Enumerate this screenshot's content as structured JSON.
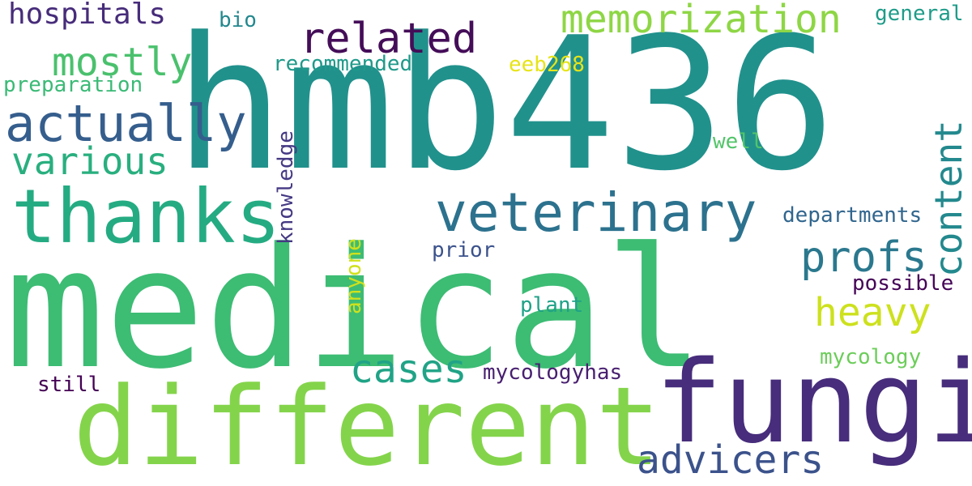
{
  "words": [
    {
      "text": "medical",
      "color": "#3dbc74"
    },
    {
      "text": "hmb436",
      "color": "#21918c"
    },
    {
      "text": "different",
      "color": "#84d44b"
    },
    {
      "text": "fungi",
      "color": "#472d7b"
    },
    {
      "text": "thanks",
      "color": "#25ab82"
    },
    {
      "text": "veterinary",
      "color": "#2c728e"
    },
    {
      "text": "actually",
      "color": "#355e8d"
    },
    {
      "text": "related",
      "color": "#440d58"
    },
    {
      "text": "memorization",
      "color": "#8ed645"
    },
    {
      "text": "mostly",
      "color": "#4ac16d"
    },
    {
      "text": "various",
      "color": "#29af7f"
    },
    {
      "text": "hospitals",
      "color": "#472c7a"
    },
    {
      "text": "content",
      "color": "#23898e"
    },
    {
      "text": "profs",
      "color": "#2a788e"
    },
    {
      "text": "heavy",
      "color": "#cde11d"
    },
    {
      "text": "cases",
      "color": "#20a386"
    },
    {
      "text": "advicers",
      "color": "#3b528b"
    },
    {
      "text": "knowledge",
      "color": "#443983"
    },
    {
      "text": "recommended",
      "color": "#1f9a8a"
    },
    {
      "text": "preparation",
      "color": "#3aba76"
    },
    {
      "text": "eeb268",
      "color": "#e7e419"
    },
    {
      "text": "bio",
      "color": "#23888e"
    },
    {
      "text": "general",
      "color": "#1e9c89"
    },
    {
      "text": "well",
      "color": "#52c569"
    },
    {
      "text": "departments",
      "color": "#31668e"
    },
    {
      "text": "anyone",
      "color": "#d0e11c"
    },
    {
      "text": "prior",
      "color": "#3b528b"
    },
    {
      "text": "possible",
      "color": "#450457"
    },
    {
      "text": "plant",
      "color": "#1fa287"
    },
    {
      "text": "mycology",
      "color": "#6ccd5a"
    },
    {
      "text": "still",
      "color": "#440154"
    },
    {
      "text": "mycologyhas",
      "color": "#481f70"
    }
  ]
}
